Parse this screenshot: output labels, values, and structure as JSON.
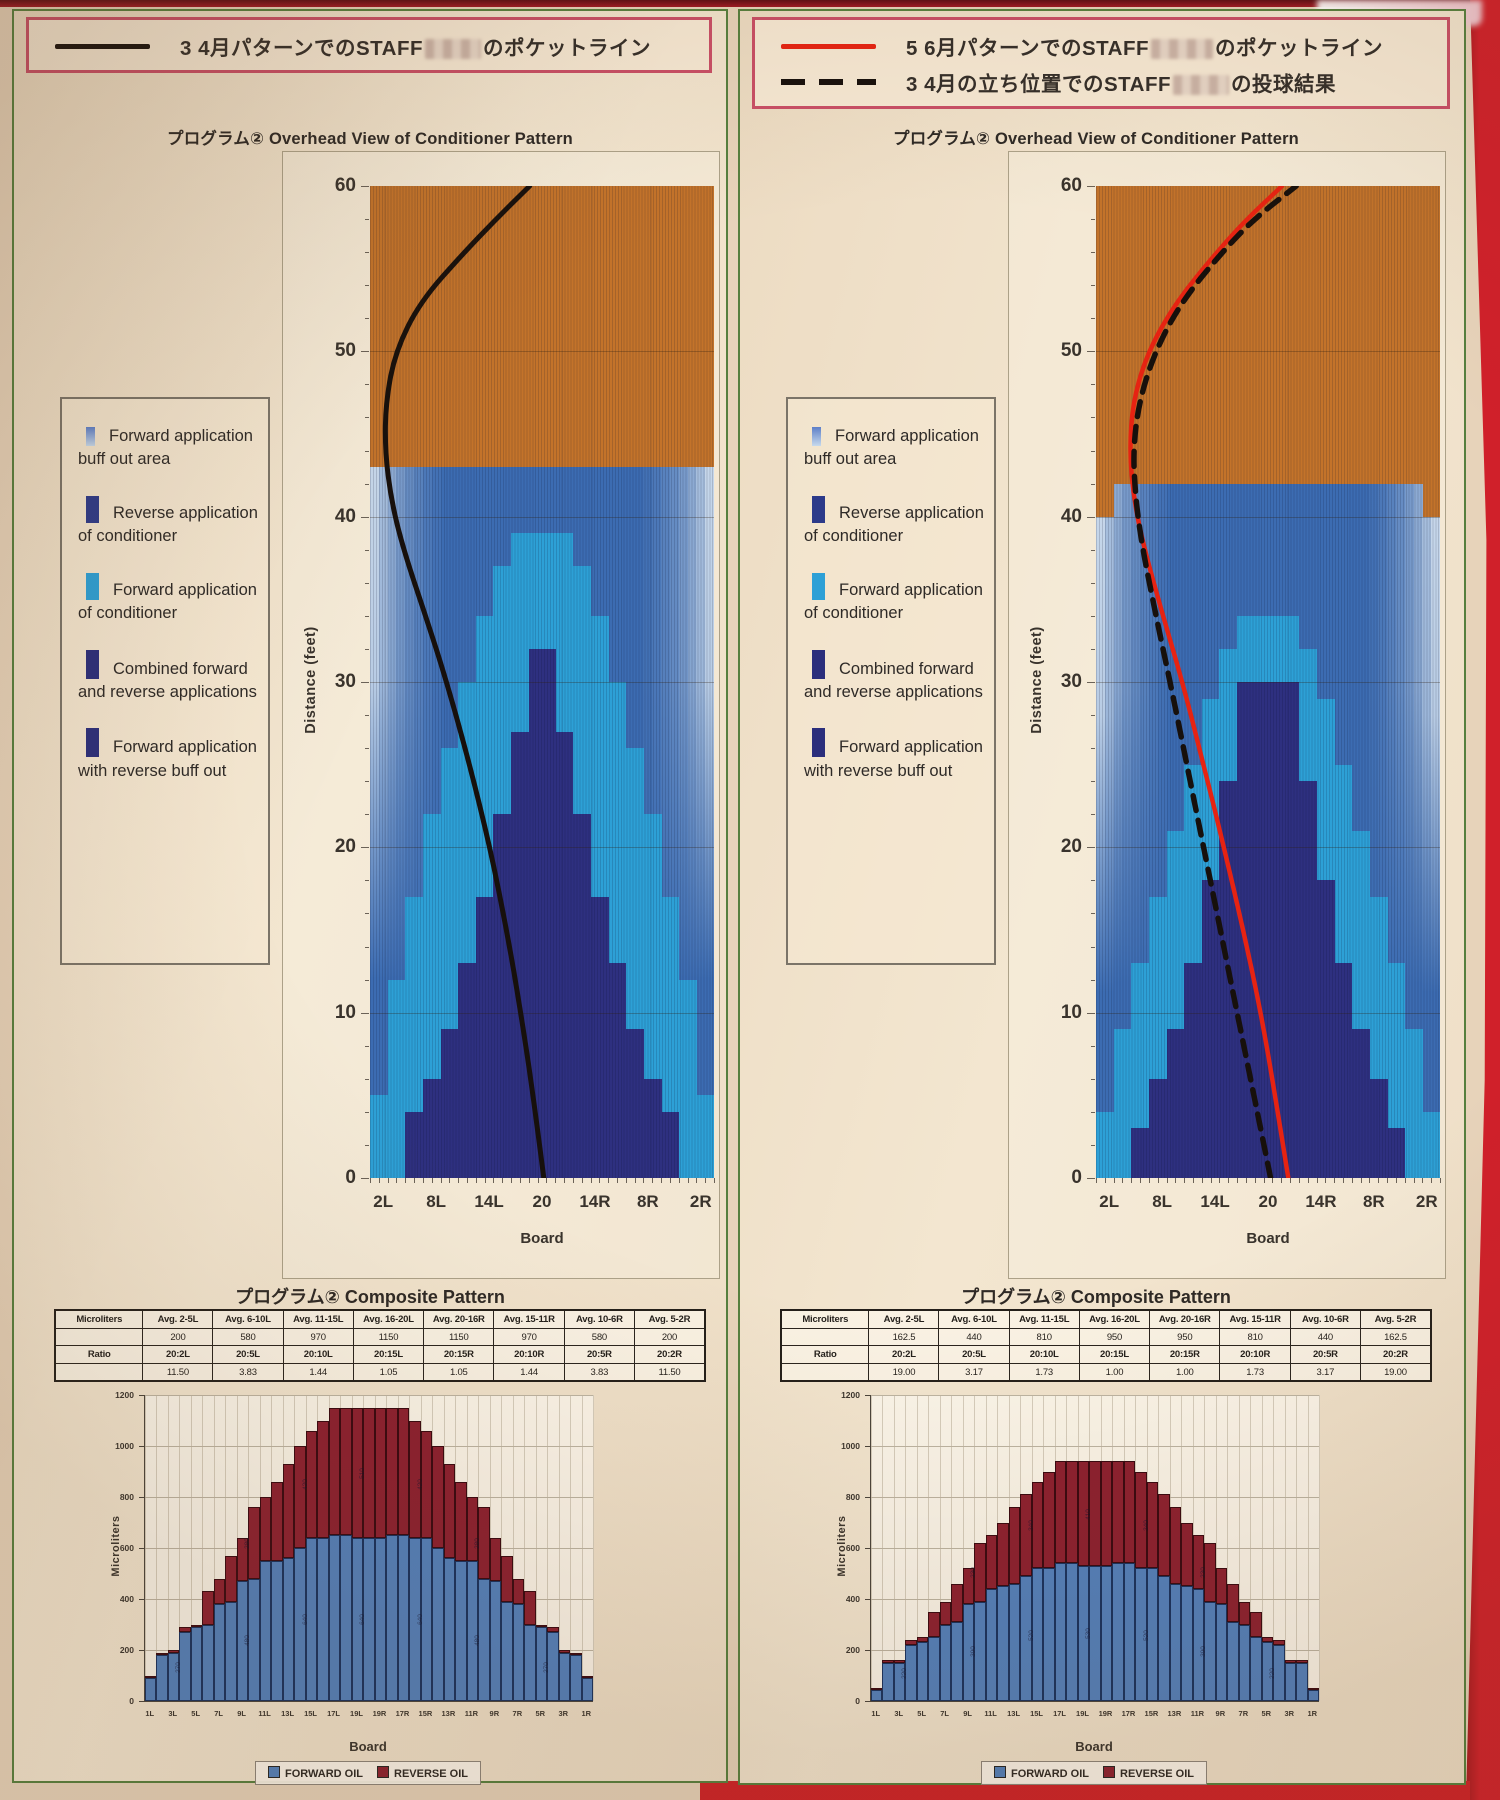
{
  "photo": {
    "paper": "#f0e1ca",
    "page_bg": "#e7d3ba",
    "red_edge": "#d0202a",
    "green_border": "#567f3e",
    "legend_border": "#c94f66"
  },
  "side_legend_items": [
    {
      "label": "Forward application buff out area",
      "color": "#5d7fc8",
      "gradient": true,
      "w": 9,
      "h": 19
    },
    {
      "label": "Reverse application of conditioner",
      "color": "#2c3a8a",
      "gradient": false,
      "w": 13,
      "h": 27
    },
    {
      "label": "Forward application of conditioner",
      "color": "#2da0d6",
      "gradient": false,
      "w": 13,
      "h": 27
    },
    {
      "label": "Combined forward and reverse applications",
      "color": "#2b2e7c",
      "gradient": false,
      "w": 13,
      "h": 29
    },
    {
      "label": "Forward application with reverse buff out",
      "color": "#2b2e7c",
      "gradient": false,
      "w": 13,
      "h": 29
    }
  ],
  "panels": [
    {
      "top_legend": [
        {
          "swatch": "solid",
          "color": "#17100c",
          "before": "3 4月パターンでのSTAFF",
          "after": "のポケットライン",
          "redact_w": 56
        }
      ],
      "overhead_title_jp": "プログラム②",
      "overhead_title_en": "Overhead View of Conditioner Pattern",
      "composite_title_jp": "プログラム②",
      "composite_title_en": "Composite Pattern",
      "overhead_ref": 0,
      "composite_ref": 1
    },
    {
      "top_legend": [
        {
          "swatch": "solid",
          "color": "#e62312",
          "before": "5 6月パターンでのSTAFF",
          "after": "のポケットライン",
          "redact_w": 62
        },
        {
          "swatch": "dashed",
          "color": "#17100c",
          "before": "3 4月の立ち位置でのSTAFF",
          "after": "の投球結果",
          "redact_w": 56
        }
      ],
      "overhead_title_jp": "プログラム②",
      "overhead_title_en": "Overhead View of Conditioner Pattern",
      "composite_title_jp": "プログラム②",
      "composite_title_en": "Composite Pattern",
      "overhead_ref": 2,
      "composite_ref": 3
    }
  ],
  "chart_data": [
    {
      "type": "heatmap",
      "name": "overhead-pattern-mar-apr",
      "title": "プログラム② Overhead View of Conditioner Pattern",
      "xlabel": "Board",
      "ylabel": "Distance (feet)",
      "x_ticks": [
        "2L",
        "8L",
        "14L",
        "20",
        "14R",
        "8R",
        "2R"
      ],
      "y_ticks": [
        60,
        50,
        40,
        30,
        20,
        10,
        0
      ],
      "ylim": [
        0,
        60
      ],
      "boards": 39,
      "pattern_length_ft": 43,
      "colors": {
        "bare_lane": "#c3732a",
        "base_blue": "#3c6cb2",
        "forward_cyan": "#2da0d6",
        "combined_navy": "#2e3080"
      },
      "bg_top_ft": [
        43,
        43,
        43,
        43,
        43,
        43,
        43,
        43,
        43,
        43,
        43,
        43,
        43,
        43,
        43,
        43,
        43,
        43,
        43,
        43,
        43,
        43,
        43,
        43,
        43,
        43,
        43,
        43,
        43,
        43,
        43,
        43,
        43,
        43,
        43,
        43,
        43,
        43,
        43
      ],
      "forward_top_ft": [
        5,
        5,
        12,
        12,
        17,
        17,
        22,
        22,
        26,
        26,
        30,
        30,
        34,
        34,
        37,
        37,
        39,
        39,
        39,
        39,
        39,
        39,
        39,
        37,
        37,
        34,
        34,
        30,
        30,
        26,
        26,
        22,
        22,
        17,
        17,
        12,
        12,
        5,
        5
      ],
      "combined_top_ft": [
        0,
        0,
        0,
        0,
        4,
        4,
        6,
        6,
        9,
        9,
        13,
        13,
        17,
        17,
        22,
        22,
        27,
        27,
        32,
        32,
        32,
        27,
        27,
        22,
        22,
        17,
        17,
        13,
        13,
        9,
        9,
        6,
        6,
        4,
        4,
        0,
        0,
        0,
        0
      ],
      "lines": [
        {
          "name": "pocket-line-mar-apr",
          "legend": "3 4月パターンでのSTAFFのポケットライン",
          "style": "solid",
          "color": "#17100c",
          "width": 5,
          "points_ft_board": [
            [
              0,
              20.2
            ],
            [
              5,
              19.0
            ],
            [
              10,
              17.6
            ],
            [
              15,
              16.0
            ],
            [
              20,
              14.1
            ],
            [
              25,
              11.8
            ],
            [
              30,
              9.2
            ],
            [
              34,
              6.8
            ],
            [
              38,
              4.3
            ],
            [
              41,
              2.9
            ],
            [
              44,
              2.2
            ],
            [
              47,
              2.3
            ],
            [
              50,
              3.4
            ],
            [
              53,
              6.2
            ],
            [
              56,
              11.2
            ],
            [
              58,
              14.8
            ],
            [
              60,
              18.6
            ]
          ]
        }
      ]
    },
    {
      "type": "bar",
      "stacked": true,
      "name": "composite-pattern-mar-apr",
      "title": "プログラム② Composite Pattern",
      "xlabel": "Board",
      "ylabel": "Microliters",
      "ylim": [
        0,
        1200
      ],
      "y_ticks": [
        0,
        200,
        400,
        600,
        800,
        1000,
        1200
      ],
      "x_labels": [
        "1L",
        "3L",
        "5L",
        "7L",
        "9L",
        "11L",
        "13L",
        "15L",
        "17L",
        "19L",
        "19R",
        "17R",
        "15R",
        "13R",
        "11R",
        "9R",
        "7R",
        "5R",
        "3R",
        "1R"
      ],
      "series": [
        {
          "name": "FORWARD OIL",
          "color": "#5280bd",
          "values": [
            90,
            180,
            190,
            270,
            290,
            300,
            380,
            390,
            470,
            480,
            550,
            550,
            560,
            600,
            640,
            640,
            650,
            650,
            640,
            640,
            640,
            650,
            650,
            640,
            640,
            600,
            560,
            550,
            550,
            480,
            470,
            390,
            380,
            300,
            290,
            270,
            190,
            180,
            90
          ]
        },
        {
          "name": "REVERSE OIL",
          "color": "#8c1f2f",
          "values": [
            10,
            10,
            10,
            20,
            10,
            130,
            100,
            180,
            170,
            280,
            250,
            310,
            370,
            400,
            420,
            460,
            500,
            500,
            510,
            510,
            510,
            500,
            500,
            460,
            420,
            400,
            370,
            310,
            250,
            280,
            170,
            180,
            100,
            130,
            10,
            20,
            10,
            10,
            10
          ]
        }
      ],
      "table": {
        "col_header_row": [
          "Microliters",
          "Avg. 2-5L",
          "Avg. 6-10L",
          "Avg. 11-15L",
          "Avg. 16-20L",
          "Avg. 20-16R",
          "Avg. 15-11R",
          "Avg. 10-6R",
          "Avg. 5-2R"
        ],
        "volume_row": [
          "",
          "200",
          "580",
          "970",
          "1150",
          "1150",
          "970",
          "580",
          "200"
        ],
        "ratio_header_row": [
          "Ratio",
          "20:2L",
          "20:5L",
          "20:10L",
          "20:15L",
          "20:15R",
          "20:10R",
          "20:5R",
          "20:2R"
        ],
        "ratio_row": [
          "",
          "11.50",
          "3.83",
          "1.44",
          "1.05",
          "1.05",
          "1.44",
          "3.83",
          "11.50"
        ]
      },
      "legend_position": "bottom"
    },
    {
      "type": "heatmap",
      "name": "overhead-pattern-may-jun",
      "title": "プログラム② Overhead View of Conditioner Pattern",
      "xlabel": "Board",
      "ylabel": "Distance (feet)",
      "x_ticks": [
        "2L",
        "8L",
        "14L",
        "20",
        "14R",
        "8R",
        "2R"
      ],
      "y_ticks": [
        60,
        50,
        40,
        30,
        20,
        10,
        0
      ],
      "ylim": [
        0,
        60
      ],
      "boards": 39,
      "pattern_length_ft": 42,
      "colors": {
        "bare_lane": "#c3732a",
        "base_blue": "#3c6cb2",
        "forward_cyan": "#2da0d6",
        "combined_navy": "#2e3080"
      },
      "bg_top_ft": [
        40,
        40,
        42,
        42,
        42,
        42,
        42,
        42,
        42,
        42,
        42,
        42,
        42,
        42,
        42,
        42,
        42,
        42,
        42,
        42,
        42,
        42,
        42,
        42,
        42,
        42,
        42,
        42,
        42,
        42,
        42,
        42,
        42,
        42,
        42,
        42,
        42,
        40,
        40
      ],
      "forward_top_ft": [
        4,
        4,
        9,
        9,
        13,
        13,
        17,
        17,
        21,
        21,
        25,
        25,
        29,
        29,
        32,
        32,
        34,
        34,
        34,
        34,
        34,
        34,
        34,
        32,
        32,
        29,
        29,
        25,
        25,
        21,
        21,
        17,
        17,
        13,
        13,
        9,
        9,
        4,
        4
      ],
      "combined_top_ft": [
        0,
        0,
        0,
        0,
        3,
        3,
        6,
        6,
        9,
        9,
        13,
        13,
        18,
        18,
        24,
        24,
        30,
        30,
        30,
        30,
        30,
        30,
        30,
        24,
        24,
        18,
        18,
        13,
        13,
        9,
        9,
        6,
        6,
        3,
        3,
        0,
        0,
        0,
        0
      ],
      "lines": [
        {
          "name": "pocket-line-may-jun",
          "legend": "5 6月パターンでのSTAFFのポケットライン",
          "style": "solid",
          "color": "#e62312",
          "width": 4.5,
          "points_ft_board": [
            [
              0,
              22.3
            ],
            [
              5,
              20.8
            ],
            [
              10,
              19.2
            ],
            [
              15,
              17.2
            ],
            [
              20,
              15.0
            ],
            [
              25,
              12.7
            ],
            [
              30,
              10.3
            ],
            [
              34,
              8.1
            ],
            [
              38,
              6.0
            ],
            [
              41,
              4.8
            ],
            [
              44,
              4.3
            ],
            [
              47,
              4.7
            ],
            [
              50,
              6.4
            ],
            [
              53,
              9.6
            ],
            [
              56,
              14.2
            ],
            [
              58,
              17.6
            ],
            [
              60,
              21.6
            ]
          ]
        },
        {
          "name": "throw-result-mar-apr-stance",
          "legend": "3 4月の立ち位置でのSTAFFの投球結果",
          "style": "dashed",
          "color": "#17100c",
          "width": 5.5,
          "points_ft_board": [
            [
              0,
              20.3
            ],
            [
              5,
              18.4
            ],
            [
              10,
              16.5
            ],
            [
              15,
              14.6
            ],
            [
              20,
              12.7
            ],
            [
              25,
              10.8
            ],
            [
              30,
              8.9
            ],
            [
              34,
              7.3
            ],
            [
              38,
              5.8
            ],
            [
              41,
              5.0
            ],
            [
              44,
              4.7
            ],
            [
              47,
              5.4
            ],
            [
              50,
              7.2
            ],
            [
              53,
              10.2
            ],
            [
              56,
              14.8
            ],
            [
              58,
              18.4
            ],
            [
              60,
              23.2
            ]
          ]
        }
      ]
    },
    {
      "type": "bar",
      "stacked": true,
      "name": "composite-pattern-may-jun",
      "title": "プログラム② Composite Pattern",
      "xlabel": "Board",
      "ylabel": "Microliters",
      "ylim": [
        0,
        1200
      ],
      "y_ticks": [
        0,
        200,
        400,
        600,
        800,
        1000,
        1200
      ],
      "x_labels": [
        "1L",
        "3L",
        "5L",
        "7L",
        "9L",
        "11L",
        "13L",
        "15L",
        "17L",
        "19L",
        "19R",
        "17R",
        "15R",
        "13R",
        "11R",
        "9R",
        "7R",
        "5R",
        "3R",
        "1R"
      ],
      "series": [
        {
          "name": "FORWARD OIL",
          "color": "#5280bd",
          "values": [
            45,
            150,
            150,
            220,
            230,
            250,
            300,
            310,
            380,
            390,
            440,
            450,
            460,
            490,
            520,
            520,
            540,
            540,
            530,
            530,
            530,
            540,
            540,
            520,
            520,
            490,
            460,
            450,
            440,
            390,
            380,
            310,
            300,
            250,
            230,
            220,
            150,
            150,
            45
          ]
        },
        {
          "name": "REVERSE OIL",
          "color": "#8c1f2f",
          "values": [
            5,
            10,
            10,
            20,
            20,
            100,
            90,
            150,
            140,
            230,
            210,
            250,
            300,
            320,
            340,
            380,
            400,
            400,
            410,
            410,
            410,
            400,
            400,
            380,
            340,
            320,
            300,
            250,
            210,
            230,
            140,
            150,
            90,
            100,
            20,
            20,
            10,
            10,
            5
          ]
        }
      ],
      "table": {
        "col_header_row": [
          "Microliters",
          "Avg. 2-5L",
          "Avg. 6-10L",
          "Avg. 11-15L",
          "Avg. 16-20L",
          "Avg. 20-16R",
          "Avg. 15-11R",
          "Avg. 10-6R",
          "Avg. 5-2R"
        ],
        "volume_row": [
          "",
          "162.5",
          "440",
          "810",
          "950",
          "950",
          "810",
          "440",
          "162.5"
        ],
        "ratio_header_row": [
          "Ratio",
          "20:2L",
          "20:5L",
          "20:10L",
          "20:15L",
          "20:15R",
          "20:10R",
          "20:5R",
          "20:2R"
        ],
        "ratio_row": [
          "",
          "19.00",
          "3.17",
          "1.73",
          "1.00",
          "1.00",
          "1.73",
          "3.17",
          "19.00"
        ]
      },
      "legend_position": "bottom"
    }
  ]
}
